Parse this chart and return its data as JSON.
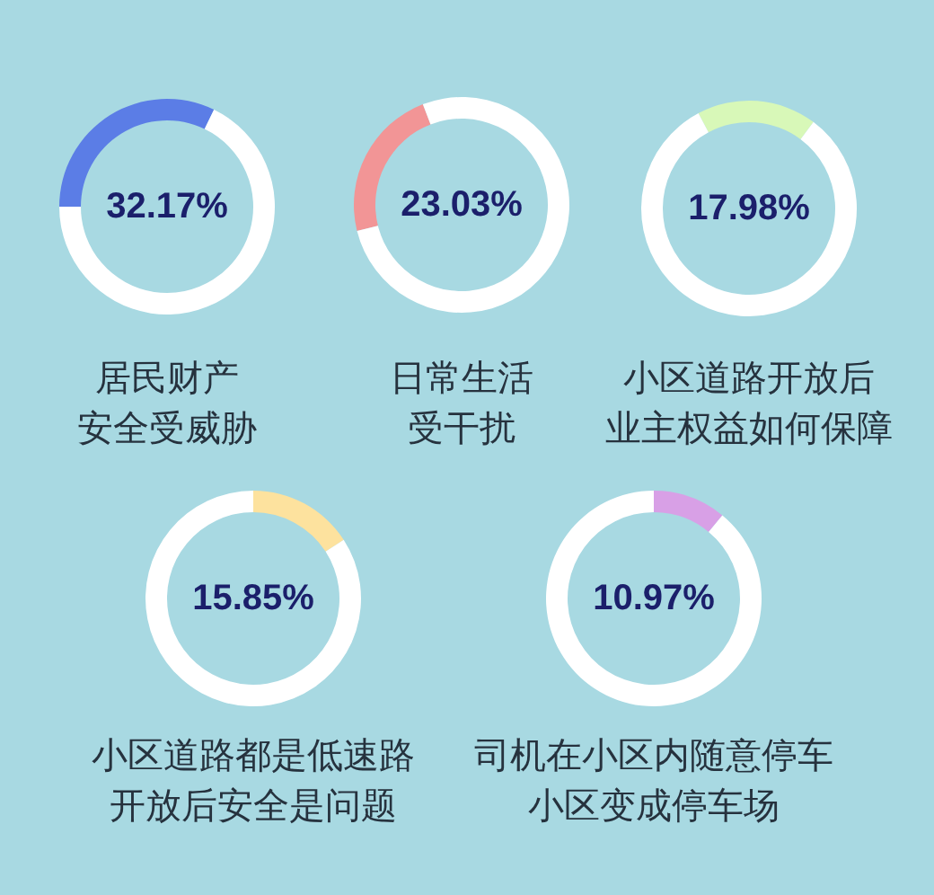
{
  "chart_data": [
    {
      "type": "donut",
      "title": "居民财产安全受威胁",
      "categories": [
        null,
        null
      ],
      "values": [
        32.17,
        67.83
      ],
      "colors": [
        "#5b7de6",
        "#ffffff"
      ],
      "annotations": [
        "32.17%"
      ]
    },
    {
      "type": "donut",
      "title": "日常生活受干扰",
      "categories": [
        null,
        null
      ],
      "values": [
        23.03,
        76.97
      ],
      "colors": [
        "#f29596",
        "#ffffff"
      ],
      "annotations": [
        "23.03%"
      ]
    },
    {
      "type": "donut",
      "title": "小区道路开放后业主权益如何保障",
      "categories": [
        null,
        null
      ],
      "values": [
        17.98,
        82.02
      ],
      "colors": [
        "#d8f8b8",
        "#ffffff"
      ],
      "annotations": [
        "17.98%"
      ]
    },
    {
      "type": "donut",
      "title": "小区道路都是低速路开放后安全是问题",
      "categories": [
        null,
        null
      ],
      "values": [
        15.85,
        84.15
      ],
      "colors": [
        "#fde29e",
        "#ffffff"
      ],
      "annotations": [
        "15.85%"
      ]
    },
    {
      "type": "donut",
      "title": "司机在小区内随意停车小区变成停车场",
      "categories": [
        null,
        null
      ],
      "values": [
        10.97,
        89.03
      ],
      "colors": [
        "#d8a0e6",
        "#ffffff"
      ],
      "annotations": [
        "10.97%"
      ]
    }
  ]
}
